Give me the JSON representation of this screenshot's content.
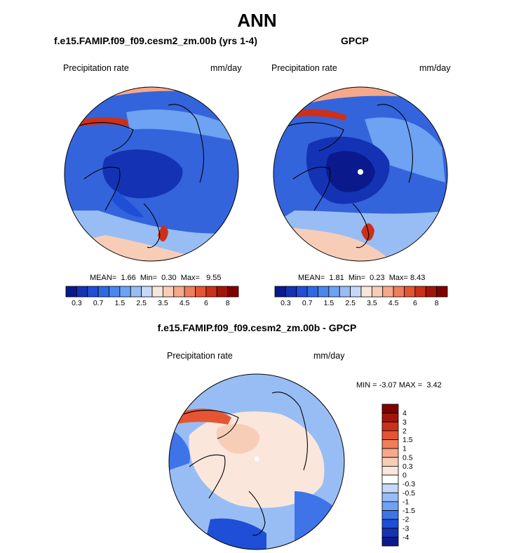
{
  "figure": {
    "title": "ANN"
  },
  "chart_data": [
    {
      "type": "heatmap",
      "projection": "north polar stereographic",
      "title": "f.e15.FAMIP.f09_f09.cesm2_zm.00b (yrs 1-4)",
      "left_label": "Precipitation rate",
      "right_label": "mm/day",
      "stats": {
        "mean_label": "MEAN=",
        "mean": "1.66",
        "min_label": "Min=",
        "min": "0.30",
        "max_label": "Max=",
        "max": "9.55"
      },
      "colorbar": {
        "orientation": "horizontal",
        "levels": [
          0.3,
          0.5,
          0.7,
          1,
          1.5,
          2,
          2.5,
          3,
          3.5,
          4,
          4.5,
          5,
          6,
          7,
          8
        ],
        "tick_labels": [
          "0.3",
          "0.7",
          "1.5",
          "2.5",
          "3.5",
          "4.5",
          "6",
          "8"
        ],
        "colors": [
          "#0a1a8c",
          "#1433b4",
          "#1f4fd6",
          "#2f6ae6",
          "#4a86ee",
          "#6ea2f2",
          "#98bdf4",
          "#c4d9f7",
          "#f6e6dc",
          "#f8cdb8",
          "#f5a98a",
          "#f07e5a",
          "#e65533",
          "#cc3019",
          "#a3140a",
          "#800000"
        ]
      }
    },
    {
      "type": "heatmap",
      "projection": "north polar stereographic",
      "title": "GPCP",
      "left_label": "Precipitation rate",
      "right_label": "mm/day",
      "stats": {
        "mean_label": "MEAN=",
        "mean": "1.81",
        "min_label": "Min=",
        "min": "0.23",
        "max_label": "Max=",
        "max": "8.43"
      },
      "colorbar": {
        "orientation": "horizontal",
        "levels": [
          0.3,
          0.5,
          0.7,
          1,
          1.5,
          2,
          2.5,
          3,
          3.5,
          4,
          4.5,
          5,
          6,
          7,
          8
        ],
        "tick_labels": [
          "0.3",
          "0.7",
          "1.5",
          "2.5",
          "3.5",
          "4.5",
          "6",
          "8"
        ],
        "colors": [
          "#0a1a8c",
          "#1433b4",
          "#1f4fd6",
          "#2f6ae6",
          "#4a86ee",
          "#6ea2f2",
          "#98bdf4",
          "#c4d9f7",
          "#f6e6dc",
          "#f8cdb8",
          "#f5a98a",
          "#f07e5a",
          "#e65533",
          "#cc3019",
          "#a3140a",
          "#800000"
        ]
      }
    },
    {
      "type": "heatmap",
      "projection": "north polar stereographic",
      "title": "f.e15.FAMIP.f09_f09.cesm2_zm.00b - GPCP",
      "left_label": "Precipitation rate",
      "right_label": "mm/day",
      "stats": {
        "min_label": "MIN =",
        "min": "-3.07",
        "max_label": "MAX =",
        "max": "3.42"
      },
      "colorbar": {
        "orientation": "vertical",
        "tick_labels": [
          "4",
          "3",
          "2",
          "1.5",
          "1",
          "0.5",
          "0.3",
          "0",
          "-0.3",
          "-0.5",
          "-1",
          "-1.5",
          "-2",
          "-3",
          "-4"
        ],
        "colors": [
          "#800000",
          "#a3140a",
          "#cc3019",
          "#e65533",
          "#f07e5a",
          "#f5a98a",
          "#f8cdb8",
          "#fbe6dc",
          "#ffffff",
          "#c4d9f7",
          "#98bdf4",
          "#6ea2f2",
          "#3f74e8",
          "#1f4fd6",
          "#1433b4",
          "#0a1a8c"
        ]
      }
    }
  ]
}
